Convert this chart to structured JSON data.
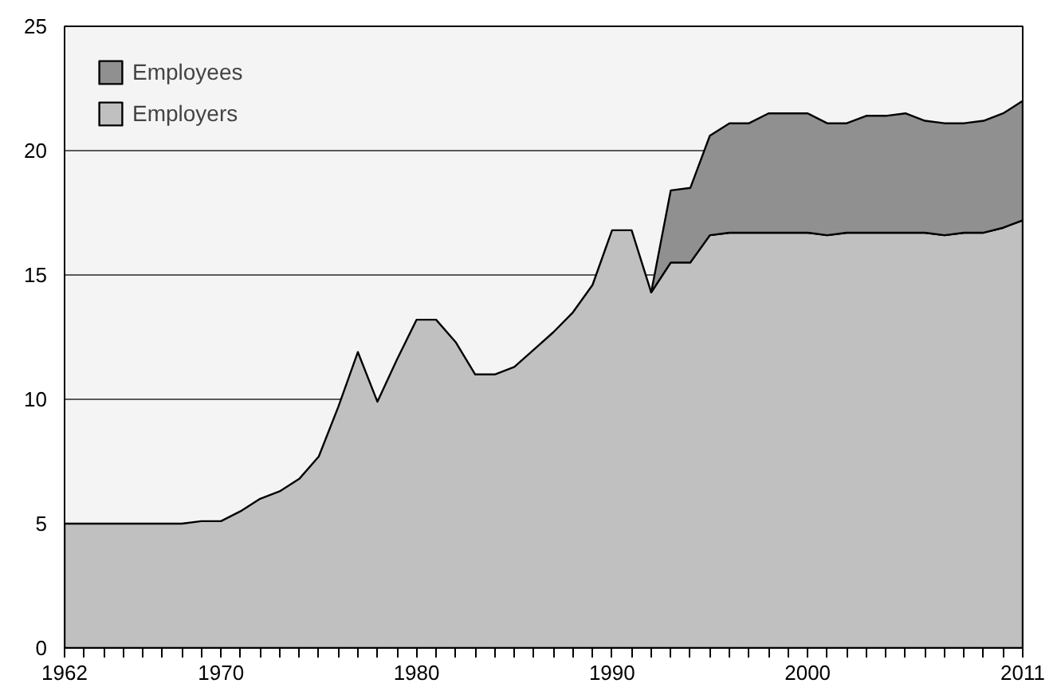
{
  "chart_data": {
    "type": "area",
    "stacked": true,
    "x": [
      1962,
      1963,
      1964,
      1965,
      1966,
      1967,
      1968,
      1969,
      1970,
      1971,
      1972,
      1973,
      1974,
      1975,
      1976,
      1977,
      1978,
      1979,
      1980,
      1981,
      1982,
      1983,
      1984,
      1985,
      1986,
      1987,
      1988,
      1989,
      1990,
      1991,
      1992,
      1993,
      1994,
      1995,
      1996,
      1997,
      1998,
      1999,
      2000,
      2001,
      2002,
      2003,
      2004,
      2005,
      2006,
      2007,
      2008,
      2009,
      2010,
      2011
    ],
    "series": [
      {
        "name": "Employers",
        "color": "#c0c0c0",
        "values": [
          5.0,
          5.0,
          5.0,
          5.0,
          5.0,
          5.0,
          5.0,
          5.1,
          5.1,
          5.5,
          6.0,
          6.3,
          6.8,
          7.7,
          9.7,
          11.9,
          9.9,
          11.6,
          13.2,
          13.2,
          12.3,
          11.0,
          11.0,
          11.3,
          12.0,
          12.7,
          13.5,
          14.6,
          16.8,
          16.8,
          14.3,
          15.5,
          15.5,
          16.6,
          16.7,
          16.7,
          16.7,
          16.7,
          16.7,
          16.6,
          16.7,
          16.7,
          16.7,
          16.7,
          16.7,
          16.6,
          16.7,
          16.7,
          16.9,
          17.2
        ]
      },
      {
        "name": "Employees",
        "color": "#909090",
        "values": [
          null,
          null,
          null,
          null,
          null,
          null,
          null,
          null,
          null,
          null,
          null,
          null,
          null,
          null,
          null,
          null,
          null,
          null,
          null,
          null,
          null,
          null,
          null,
          null,
          null,
          null,
          null,
          null,
          null,
          null,
          0,
          2.9,
          3.0,
          4.0,
          4.4,
          4.4,
          4.8,
          4.8,
          4.8,
          4.5,
          4.4,
          4.7,
          4.7,
          4.8,
          4.5,
          4.5,
          4.4,
          4.5,
          4.6,
          4.8
        ]
      }
    ],
    "xlim": [
      1962,
      2011
    ],
    "xticks": [
      1962,
      {
        "value": 1963,
        "label": null
      },
      {
        "value": 1964,
        "label": null
      },
      {
        "value": 1965,
        "label": null
      },
      {
        "value": 1966,
        "label": null
      },
      {
        "value": 1967,
        "label": null
      },
      {
        "value": 1968,
        "label": null
      },
      {
        "value": 1969,
        "label": null
      },
      1970,
      {
        "value": 1971,
        "label": null
      },
      {
        "value": 1972,
        "label": null
      },
      {
        "value": 1973,
        "label": null
      },
      {
        "value": 1974,
        "label": null
      },
      {
        "value": 1975,
        "label": null
      },
      {
        "value": 1976,
        "label": null
      },
      {
        "value": 1977,
        "label": null
      },
      {
        "value": 1978,
        "label": null
      },
      {
        "value": 1979,
        "label": null
      },
      1980,
      {
        "value": 1981,
        "label": null
      },
      {
        "value": 1982,
        "label": null
      },
      {
        "value": 1983,
        "label": null
      },
      {
        "value": 1984,
        "label": null
      },
      {
        "value": 1985,
        "label": null
      },
      {
        "value": 1986,
        "label": null
      },
      {
        "value": 1987,
        "label": null
      },
      {
        "value": 1988,
        "label": null
      },
      {
        "value": 1989,
        "label": null
      },
      1990,
      {
        "value": 1991,
        "label": null
      },
      {
        "value": 1992,
        "label": null
      },
      {
        "value": 1993,
        "label": null
      },
      {
        "value": 1994,
        "label": null
      },
      {
        "value": 1995,
        "label": null
      },
      {
        "value": 1996,
        "label": null
      },
      {
        "value": 1997,
        "label": null
      },
      {
        "value": 1998,
        "label": null
      },
      {
        "value": 1999,
        "label": null
      },
      2000,
      {
        "value": 2001,
        "label": null
      },
      {
        "value": 2002,
        "label": null
      },
      {
        "value": 2003,
        "label": null
      },
      {
        "value": 2004,
        "label": null
      },
      {
        "value": 2005,
        "label": null
      },
      {
        "value": 2006,
        "label": null
      },
      {
        "value": 2007,
        "label": null
      },
      {
        "value": 2008,
        "label": null
      },
      {
        "value": 2009,
        "label": null
      },
      {
        "value": 2010,
        "label": null
      },
      2011
    ],
    "ylim": [
      0,
      25
    ],
    "yticks": [
      0,
      5,
      10,
      15,
      20,
      25
    ],
    "grid": "y",
    "legend": "top left"
  }
}
